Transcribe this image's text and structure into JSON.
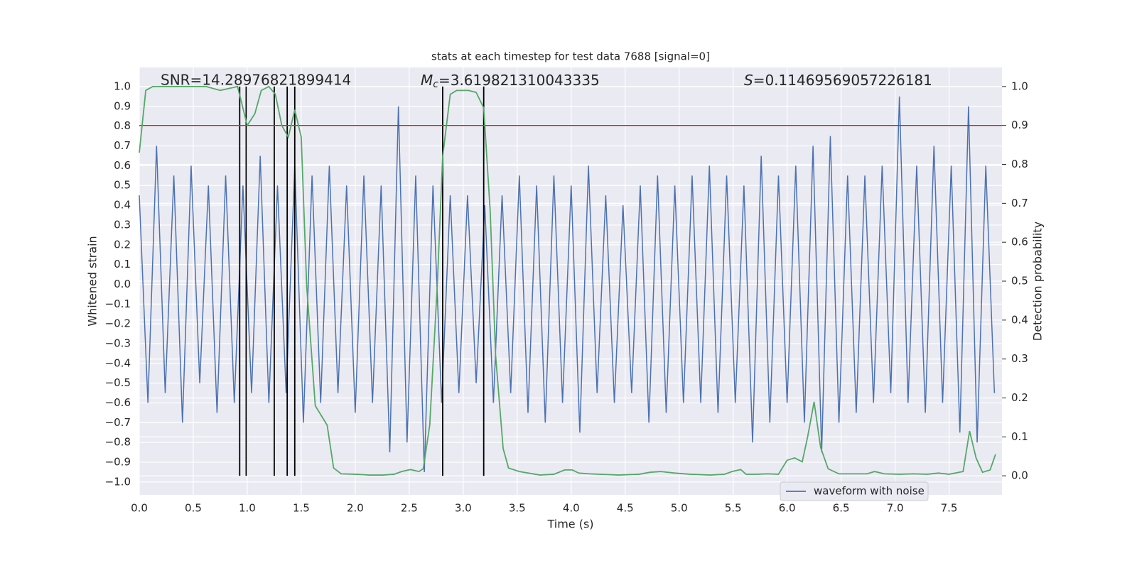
{
  "chart_data": {
    "type": "line",
    "title": "stats at each timestep for test data 7688 [signal=0]",
    "xlabel": "Time (s)",
    "ylabel": "Whitened strain",
    "y2label": "Detection probability",
    "annotations": [
      "SNR=14.28976821899414",
      [
        "M",
        "c",
        "=3.619821310043335"
      ],
      [
        "S",
        "=0.11469569057226181"
      ]
    ],
    "xlim": [
      0,
      7.99
    ],
    "ylim": [
      -1.065,
      1.097
    ],
    "y2lim": [
      -0.049,
      1.049
    ],
    "xticks": [
      {
        "value": 0,
        "label": "0.0"
      },
      0.5,
      {
        "value": 1,
        "label": "1.0"
      },
      1.5,
      {
        "value": 2,
        "label": "2.0"
      },
      2.5,
      {
        "value": 3,
        "label": "3.0"
      },
      3.5,
      {
        "value": 4,
        "label": "4.0"
      },
      4.5,
      {
        "value": 5,
        "label": "5.0"
      },
      5.5,
      {
        "value": 6,
        "label": "6.0"
      },
      6.5,
      {
        "value": 7,
        "label": "7.0"
      },
      7.5
    ],
    "yticks": [
      {
        "value": -1,
        "label": "−1.0"
      },
      {
        "value": -0.9,
        "label": "−0.9"
      },
      {
        "value": -0.8,
        "label": "−0.8"
      },
      {
        "value": -0.7,
        "label": "−0.7"
      },
      {
        "value": -0.6,
        "label": "−0.6"
      },
      {
        "value": -0.5,
        "label": "−0.5"
      },
      {
        "value": -0.4,
        "label": "−0.4"
      },
      {
        "value": -0.3,
        "label": "−0.3"
      },
      {
        "value": -0.2,
        "label": "−0.2"
      },
      {
        "value": -0.1,
        "label": "−0.1"
      },
      {
        "value": 0,
        "label": "0.0"
      },
      0.1,
      0.2,
      0.3,
      0.4,
      0.5,
      0.6,
      0.7,
      0.8,
      0.9,
      {
        "value": 1,
        "label": "1.0"
      }
    ],
    "y2ticks": [
      {
        "value": 0,
        "label": "0.0"
      },
      0.1,
      0.2,
      0.3,
      0.4,
      0.5,
      0.6,
      0.7,
      0.8,
      0.9,
      {
        "value": 1,
        "label": "1.0"
      }
    ],
    "grid": true,
    "legend": "lower right",
    "series": [
      {
        "name": "waveform with noise",
        "color": "#4c72b0",
        "x": [
          0,
          0.08,
          0.16,
          0.24,
          0.32,
          0.4,
          0.48,
          0.56,
          0.64,
          0.72,
          0.8,
          0.88,
          0.96,
          1.04,
          1.12,
          1.2,
          1.28,
          1.36,
          1.44,
          1.52,
          1.6,
          1.68,
          1.76,
          1.84,
          1.92,
          2,
          2.08,
          2.16,
          2.24,
          2.32,
          2.4,
          2.48,
          2.56,
          2.64,
          2.72,
          2.8,
          2.88,
          2.96,
          3.04,
          3.12,
          3.2,
          3.28,
          3.36,
          3.44,
          3.52,
          3.6,
          3.68,
          3.76,
          3.84,
          3.92,
          4,
          4.08,
          4.16,
          4.24,
          4.32,
          4.4,
          4.48,
          4.56,
          4.64,
          4.72,
          4.8,
          4.88,
          4.96,
          5.04,
          5.12,
          5.2,
          5.28,
          5.36,
          5.44,
          5.52,
          5.6,
          5.68,
          5.76,
          5.84,
          5.92,
          6,
          6.08,
          6.16,
          6.24,
          6.32,
          6.4,
          6.48,
          6.56,
          6.64,
          6.72,
          6.8,
          6.88,
          6.96,
          7.04,
          7.12,
          7.2,
          7.28,
          7.36,
          7.44,
          7.52,
          7.6,
          7.68,
          7.76,
          7.84,
          7.92
        ],
        "values": [
          0.45,
          -0.6,
          0.7,
          -0.55,
          0.55,
          -0.7,
          0.6,
          -0.5,
          0.5,
          -0.65,
          0.55,
          -0.6,
          0.5,
          -0.55,
          0.65,
          -0.6,
          0.5,
          -0.55,
          0.6,
          -0.7,
          0.55,
          -0.6,
          0.6,
          -0.55,
          0.5,
          -0.65,
          0.55,
          -0.6,
          0.5,
          -0.85,
          0.9,
          -0.8,
          0.55,
          -0.95,
          0.5,
          -0.6,
          0.45,
          -0.55,
          0.45,
          -0.5,
          0.4,
          -0.6,
          0.45,
          -0.55,
          0.55,
          -0.65,
          0.5,
          -0.7,
          0.55,
          -0.6,
          0.5,
          -0.75,
          0.6,
          -0.55,
          0.45,
          -0.6,
          0.4,
          -0.55,
          0.5,
          -0.7,
          0.55,
          -0.65,
          0.5,
          -0.6,
          0.55,
          -0.6,
          0.6,
          -0.65,
          0.55,
          -0.6,
          0.5,
          -0.8,
          0.65,
          -0.7,
          0.55,
          -0.6,
          0.6,
          -0.7,
          0.7,
          -0.85,
          0.75,
          -0.7,
          0.55,
          -0.65,
          0.55,
          -0.6,
          0.6,
          -0.55,
          0.95,
          -0.6,
          0.6,
          -0.65,
          0.7,
          -0.6,
          0.6,
          -0.75,
          0.9,
          -0.8,
          0.6,
          -0.55
        ]
      },
      {
        "color": "#55a868",
        "axis": "y2",
        "x": [
          0,
          0.06,
          0.125,
          0.62,
          0.75,
          0.91,
          1.0,
          1.07,
          1.13,
          1.2,
          1.26,
          1.32,
          1.38,
          1.44,
          1.5,
          1.55,
          1.63,
          1.74,
          1.8,
          1.87,
          2.0,
          2.13,
          2.26,
          2.36,
          2.43,
          2.51,
          2.59,
          2.63,
          2.69,
          2.76,
          2.81,
          2.88,
          2.94,
          3.05,
          3.12,
          3.19,
          3.25,
          3.3,
          3.37,
          3.42,
          3.52,
          3.71,
          3.84,
          3.94,
          4.01,
          4.07,
          4.17,
          4.44,
          4.63,
          4.73,
          4.83,
          4.96,
          5.1,
          5.29,
          5.42,
          5.49,
          5.57,
          5.62,
          5.72,
          5.82,
          5.92,
          6.0,
          6.07,
          6.14,
          6.19,
          6.25,
          6.31,
          6.38,
          6.48,
          6.61,
          6.74,
          6.81,
          6.9,
          7.04,
          7.17,
          7.3,
          7.4,
          7.5,
          7.63,
          7.69,
          7.75,
          7.81,
          7.88,
          7.93
        ],
        "values": [
          0.83,
          0.99,
          1.0,
          1.0,
          0.99,
          1.0,
          0.9,
          0.93,
          0.99,
          1.0,
          0.98,
          0.9,
          0.87,
          0.94,
          0.87,
          0.49,
          0.18,
          0.13,
          0.02,
          0.005,
          0.004,
          0.002,
          0.002,
          0.004,
          0.011,
          0.016,
          0.011,
          0.018,
          0.13,
          0.49,
          0.82,
          0.98,
          0.99,
          0.99,
          0.985,
          0.945,
          0.68,
          0.31,
          0.07,
          0.02,
          0.011,
          0.002,
          0.004,
          0.015,
          0.015,
          0.007,
          0.005,
          0.002,
          0.004,
          0.009,
          0.011,
          0.007,
          0.004,
          0.002,
          0.004,
          0.011,
          0.016,
          0.004,
          0.004,
          0.005,
          0.004,
          0.04,
          0.046,
          0.036,
          0.1,
          0.19,
          0.073,
          0.018,
          0.005,
          0.005,
          0.005,
          0.011,
          0.005,
          0.004,
          0.005,
          0.004,
          0.007,
          0.004,
          0.011,
          0.115,
          0.046,
          0.009,
          0.015,
          0.055
        ]
      }
    ],
    "vlines": {
      "values": [
        0.93,
        0.99,
        1.25,
        1.37,
        1.44,
        2.81,
        3.19
      ],
      "span": [
        0,
        1
      ],
      "axis": "y2",
      "color": "#000000"
    },
    "hline": {
      "value": 0.9,
      "axis": "y2",
      "color": "#b5312f"
    }
  }
}
